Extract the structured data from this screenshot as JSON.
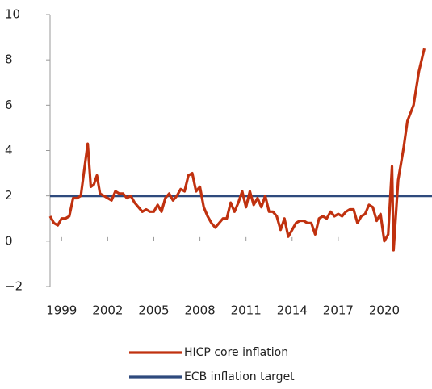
{
  "chart_data": {
    "type": "line",
    "xlim": [
      1998.25,
      2023.1
    ],
    "ylim": [
      -2,
      10
    ],
    "xticks": [
      1999,
      2002,
      2005,
      2008,
      2011,
      2014,
      2017,
      2020
    ],
    "yticks": [
      {
        "value": -2,
        "label": "−2"
      },
      0,
      2,
      4,
      6,
      8,
      10
    ],
    "series": [
      {
        "name": "HICP core inflation",
        "color": "#c0310f",
        "x": [
          1998.25,
          1998.5,
          1998.75,
          1999.0,
          1999.25,
          1999.5,
          1999.75,
          2000.0,
          2000.25,
          2000.7,
          2000.9,
          2001.1,
          2001.3,
          2001.5,
          2001.75,
          2002.0,
          2002.25,
          2002.5,
          2002.75,
          2003.0,
          2003.25,
          2003.5,
          2003.75,
          2004.0,
          2004.25,
          2004.5,
          2004.75,
          2005.0,
          2005.25,
          2005.5,
          2005.75,
          2006.0,
          2006.25,
          2006.5,
          2006.75,
          2007.0,
          2007.25,
          2007.5,
          2007.75,
          2008.0,
          2008.25,
          2008.5,
          2008.75,
          2009.0,
          2009.25,
          2009.5,
          2009.75,
          2010.0,
          2010.25,
          2010.5,
          2010.75,
          2011.0,
          2011.25,
          2011.5,
          2011.75,
          2012.0,
          2012.25,
          2012.5,
          2012.75,
          2013.0,
          2013.25,
          2013.5,
          2013.75,
          2014.0,
          2014.25,
          2014.5,
          2014.75,
          2015.0,
          2015.25,
          2015.5,
          2015.75,
          2016.0,
          2016.25,
          2016.5,
          2016.75,
          2017.0,
          2017.25,
          2017.5,
          2017.75,
          2018.0,
          2018.25,
          2018.5,
          2018.75,
          2019.0,
          2019.25,
          2019.5,
          2019.75,
          2020.0,
          2020.25,
          2020.5,
          2020.6,
          2020.9,
          2021.25,
          2021.5,
          2021.9,
          2022.25,
          2022.6
        ],
        "values": [
          1.1,
          0.8,
          0.7,
          1.0,
          1.0,
          1.1,
          1.9,
          1.9,
          2.0,
          4.3,
          2.4,
          2.5,
          2.9,
          2.1,
          2.0,
          1.9,
          1.8,
          2.2,
          2.1,
          2.1,
          1.9,
          2.0,
          1.7,
          1.5,
          1.3,
          1.4,
          1.3,
          1.3,
          1.6,
          1.3,
          1.9,
          2.1,
          1.8,
          2.0,
          2.3,
          2.2,
          2.9,
          3.0,
          2.2,
          2.4,
          1.5,
          1.1,
          0.8,
          0.6,
          0.8,
          1.0,
          1.0,
          1.7,
          1.3,
          1.7,
          2.2,
          1.5,
          2.2,
          1.6,
          1.9,
          1.5,
          2.0,
          1.3,
          1.3,
          1.1,
          0.5,
          1.0,
          0.2,
          0.5,
          0.8,
          0.9,
          0.9,
          0.8,
          0.8,
          0.3,
          1.0,
          1.1,
          1.0,
          1.3,
          1.1,
          1.2,
          1.1,
          1.3,
          1.4,
          1.4,
          0.8,
          1.1,
          1.2,
          1.6,
          1.5,
          0.9,
          1.2,
          0.0,
          0.3,
          3.3,
          -0.4,
          2.7,
          4.1,
          5.3,
          6.0,
          7.5,
          8.5
        ]
      },
      {
        "name": "ECB inflation target",
        "color": "#2e4a7d",
        "x": [
          1998.25,
          2023.1
        ],
        "values": [
          2,
          2
        ]
      }
    ]
  }
}
